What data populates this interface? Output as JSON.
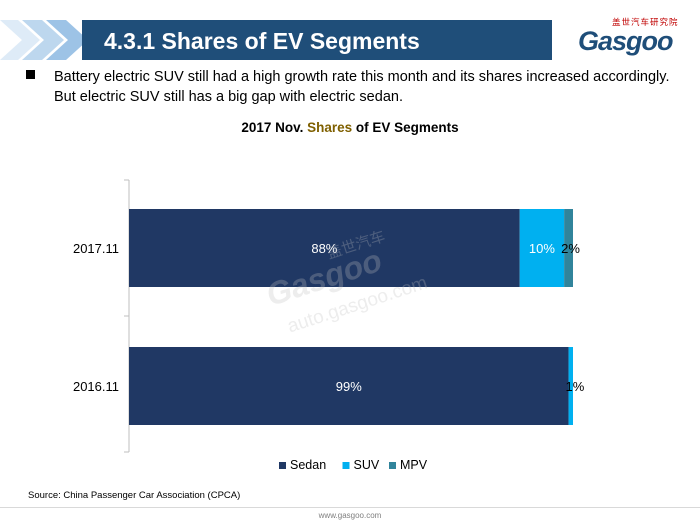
{
  "header": {
    "title": "4.3.1 Shares of EV Segments",
    "logo_cn": "盖世汽车研究院",
    "logo_word": "Gasgoo"
  },
  "bullet": {
    "text": "Battery electric SUV still had a high growth rate this month and its shares increased accordingly. But electric SUV still has a big gap with electric sedan."
  },
  "chart_title": {
    "part1": "2017 Nov. ",
    "part2": "Shares",
    "part3": " of EV Segments"
  },
  "watermark": {
    "cn": "盖世汽车",
    "word": "Gasgoo",
    "url": "auto.gasgoo.com"
  },
  "source": "Source: China Passenger Car Association (CPCA)",
  "footer_url": "www.gasgoo.com",
  "colors": {
    "title_bar": "#1f4e79",
    "chevron_light": "#bdd7ee",
    "chevron_mid": "#9dc3e6",
    "accent_red": "#c00000"
  },
  "chart_data": {
    "type": "bar",
    "orientation": "horizontal",
    "stacked": true,
    "title": "2017 Nov. Shares of EV Segments",
    "categories": [
      "2017.11",
      "2016.11"
    ],
    "series": [
      {
        "name": "Sedan",
        "color": "#203864",
        "values": [
          88,
          99
        ],
        "labels": [
          "88%",
          "99%"
        ]
      },
      {
        "name": "SUV",
        "color": "#00b0f0",
        "values": [
          10,
          1
        ],
        "labels": [
          "10%",
          "1%"
        ]
      },
      {
        "name": "MPV",
        "color": "#31849b",
        "values": [
          2,
          0
        ],
        "labels": [
          "2%",
          ""
        ]
      }
    ],
    "xlim": [
      0,
      100
    ],
    "grid": false,
    "legend": "bottom"
  }
}
